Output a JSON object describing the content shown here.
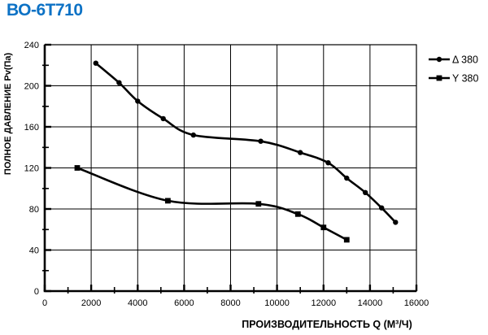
{
  "title": {
    "text": "ВО-6Т710",
    "color": "#0d72c5"
  },
  "chart_data": {
    "type": "line",
    "title": "ВО-6Т710",
    "xlabel": "ПРОИЗВОДИТЕЛЬНОСТЬ  Q  (М³/Ч)",
    "ylabel": "ПОЛНОЕ ДАВЛЕНИЕ  Pv(Па)",
    "xlim": [
      0,
      16000
    ],
    "ylim": [
      0,
      240
    ],
    "x_major_step": 2000,
    "x_minor_step": 1000,
    "y_major_step": 40,
    "y_minor_step": 20,
    "grid": true,
    "legend_position": "outside-top-right",
    "axis_color": "#000000",
    "x_tick_labels": [
      "0",
      "2000",
      "4000",
      "6000",
      "8000",
      "10000",
      "12000",
      "14000",
      "16000"
    ],
    "y_tick_labels": [
      "0",
      "40",
      "80",
      "120",
      "160",
      "200",
      "240"
    ],
    "series": [
      {
        "name": "Δ 380",
        "slug": "delta-380",
        "marker": "circle",
        "color": "#000000",
        "points": [
          [
            2200,
            222
          ],
          [
            3200,
            203
          ],
          [
            4000,
            185
          ],
          [
            5100,
            168
          ],
          [
            6400,
            152
          ],
          [
            9300,
            146
          ],
          [
            11000,
            135
          ],
          [
            12200,
            125
          ],
          [
            13000,
            110
          ],
          [
            13800,
            96
          ],
          [
            14500,
            81
          ],
          [
            15100,
            67
          ]
        ]
      },
      {
        "name": "Y 380",
        "slug": "y-380",
        "marker": "square",
        "color": "#000000",
        "points": [
          [
            1400,
            120
          ],
          [
            5300,
            88
          ],
          [
            9200,
            85
          ],
          [
            10900,
            75
          ],
          [
            12000,
            62
          ],
          [
            13000,
            50
          ]
        ]
      }
    ]
  }
}
